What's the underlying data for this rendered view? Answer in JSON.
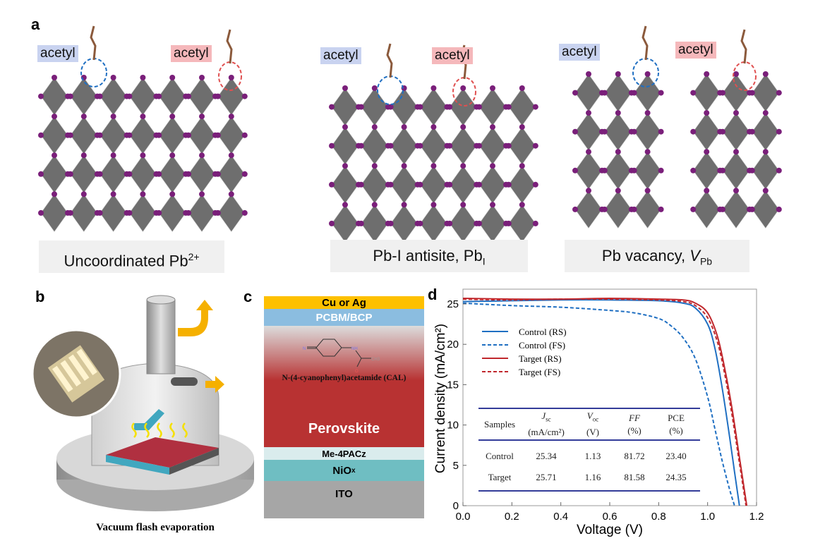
{
  "panel_a": {
    "label": "a",
    "structures": [
      {
        "acetyl_blue": "acetyl",
        "acetyl_pink": "acetyl",
        "caption": "Uncoordinated Pb",
        "caption_sup": "2+"
      },
      {
        "acetyl_blue": "acetyl",
        "acetyl_pink": "acetyl",
        "caption": "Pb-I antisite, Pb",
        "caption_sub": "I"
      },
      {
        "acetyl_blue": "acetyl",
        "acetyl_pink": "acetyl",
        "caption": "Pb vacancy, ",
        "caption_italic": "V",
        "caption_sub": "Pb"
      }
    ],
    "colors": {
      "octahedra": "#555555",
      "iodine": "#7a1f7a",
      "defect_circle_blue": "#1f6fc2",
      "defect_circle_red": "#e05050"
    }
  },
  "panel_b": {
    "label": "b",
    "caption": "Vacuum flash evaporation"
  },
  "panel_c": {
    "label": "c",
    "layers": [
      {
        "name": "Cu or Ag",
        "color": "#fec000"
      },
      {
        "name": "PCBM/BCP",
        "color": "#8bbde0"
      },
      {
        "name": "Perovskite",
        "color": "#b83232"
      },
      {
        "name": "Me-4PACz",
        "color": "#daeced"
      },
      {
        "name": "NiO",
        "sub": "x",
        "color": "#6fbec2"
      },
      {
        "name": "ITO",
        "color": "#a6a6a6"
      }
    ],
    "molecule_name": "N-(4-cyanophenyl)acetamide (CAL)",
    "molecule_atoms": {
      "n": "N",
      "nh": "NH",
      "o": "O",
      "ch3": "CH3"
    }
  },
  "panel_d": {
    "label": "d",
    "table": {
      "headers": [
        {
          "top": "Samples",
          "bottom": ""
        },
        {
          "top": "J",
          "top_sub": "sc",
          "bottom": "(mA/cm²)"
        },
        {
          "top": "V",
          "top_sub": "oc",
          "bottom": "(V)"
        },
        {
          "top": "FF",
          "bottom": "(%)"
        },
        {
          "top": "PCE",
          "bottom": "(%)"
        }
      ],
      "rows": [
        [
          "Control",
          "25.34",
          "1.13",
          "81.72",
          "23.40"
        ],
        [
          "Target",
          "25.71",
          "1.16",
          "81.58",
          "24.35"
        ]
      ]
    }
  },
  "chart_data": {
    "type": "line",
    "title": "",
    "xlabel": "Voltage (V)",
    "ylabel": "Current density (mA/cm²)",
    "xlim": [
      0.0,
      1.2
    ],
    "ylim": [
      0,
      26.5
    ],
    "xticks": [
      "0.0",
      "0.2",
      "0.4",
      "0.6",
      "0.8",
      "1.0",
      "1.2"
    ],
    "yticks": [
      "0",
      "5",
      "10",
      "15",
      "20",
      "25"
    ],
    "grid": false,
    "legend_placement": "upper-left",
    "series": [
      {
        "name": "Control (RS)",
        "color": "#1f6fc2",
        "dash": false,
        "x": [
          0,
          0.2,
          0.4,
          0.6,
          0.8,
          0.9,
          0.95,
          1.0,
          1.03,
          1.06,
          1.09,
          1.11,
          1.13
        ],
        "y": [
          25.3,
          25.4,
          25.5,
          25.5,
          25.4,
          25.1,
          24.5,
          22.5,
          19.5,
          14.5,
          8.5,
          4.2,
          0
        ]
      },
      {
        "name": "Control (FS)",
        "color": "#1f6fc2",
        "dash": true,
        "x": [
          0,
          0.2,
          0.4,
          0.6,
          0.7,
          0.8,
          0.85,
          0.9,
          0.95,
          1.0,
          1.03,
          1.06,
          1.09,
          1.11
        ],
        "y": [
          25.1,
          24.8,
          24.6,
          24.2,
          23.9,
          23.2,
          22.3,
          20.8,
          18.2,
          13.5,
          9.5,
          5.5,
          2.0,
          0
        ]
      },
      {
        "name": "Target (RS)",
        "color": "#c0282d",
        "dash": false,
        "x": [
          0,
          0.2,
          0.4,
          0.6,
          0.8,
          0.9,
          0.95,
          1.0,
          1.04,
          1.07,
          1.1,
          1.13,
          1.16
        ],
        "y": [
          25.7,
          25.6,
          25.6,
          25.7,
          25.6,
          25.5,
          25.1,
          23.9,
          21.0,
          17.0,
          12.0,
          6.0,
          0
        ]
      },
      {
        "name": "Target (FS)",
        "color": "#c0282d",
        "dash": true,
        "x": [
          0,
          0.2,
          0.4,
          0.6,
          0.8,
          0.9,
          0.95,
          1.0,
          1.04,
          1.07,
          1.1,
          1.13,
          1.157
        ],
        "y": [
          25.6,
          25.5,
          25.6,
          25.6,
          25.5,
          25.3,
          24.8,
          23.3,
          20.3,
          16.3,
          11.2,
          5.3,
          0
        ]
      }
    ]
  }
}
